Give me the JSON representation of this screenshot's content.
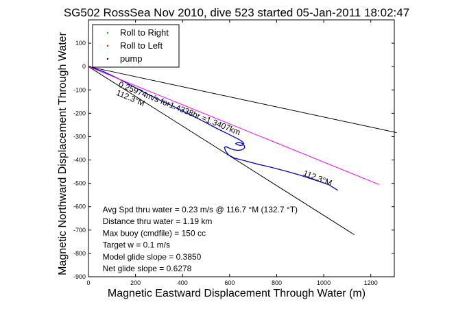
{
  "chart_data": {
    "type": "line",
    "title": "SG502 RossSea Nov 2010, dive 523 started 05-Jan-2011 18:02:47",
    "xlabel": "Magnetic Eastward Displacement Through Water (m)",
    "ylabel": "Magnetic Northward Displacement Through Water",
    "xlim": [
      0,
      1300
    ],
    "ylim": [
      -900,
      200
    ],
    "xticks": [
      0,
      200,
      400,
      600,
      800,
      1000,
      1200
    ],
    "yticks": [
      100,
      0,
      -100,
      -200,
      -300,
      -400,
      -500,
      -600,
      -700,
      -800,
      -900
    ],
    "grid": false,
    "legend_position": "top-left",
    "legend": [
      {
        "label": "Roll to Right",
        "color": "#00aa00"
      },
      {
        "label": "Roll to Left",
        "color": "#ff0000"
      },
      {
        "label": "pump",
        "color": "#000000"
      }
    ],
    "series": [
      {
        "color": "#0000cc",
        "x": [
          0,
          60,
          120,
          180,
          240,
          300,
          360,
          420,
          480,
          540,
          600,
          640,
          655,
          660,
          655,
          645,
          632,
          626,
          632,
          645,
          655,
          662,
          664,
          660,
          650,
          635,
          620,
          600,
          585,
          578,
          582,
          595,
          620,
          660,
          720,
          780,
          840,
          900,
          960,
          1020,
          1060
        ],
        "y": [
          0,
          -20,
          -48,
          -80,
          -112,
          -142,
          -170,
          -200,
          -230,
          -262,
          -292,
          -312,
          -322,
          -330,
          -336,
          -338,
          -334,
          -330,
          -326,
          -326,
          -330,
          -338,
          -346,
          -352,
          -357,
          -359,
          -357,
          -350,
          -343,
          -346,
          -360,
          -378,
          -392,
          -402,
          -418,
          -432,
          -448,
          -465,
          -485,
          -505,
          -530
        ]
      },
      {
        "color": "#ff00ff",
        "x": [
          0,
          1235
        ],
        "y": [
          0,
          -505
        ]
      }
    ],
    "reference_lines": [
      {
        "color": "#000000",
        "x": [
          0,
          1310
        ],
        "y": [
          0,
          -283
        ]
      },
      {
        "color": "#000000",
        "x": [
          0,
          1130
        ],
        "y": [
          0,
          -720
        ]
      }
    ],
    "annotations": [
      {
        "text": "0.25974m/s for1.4338hr =1.3407km",
        "x": 125,
        "y": -85,
        "angle": 22
      },
      {
        "text": "112.3°M",
        "x": 115,
        "y": -120,
        "angle": 23
      },
      {
        "text": "112.3°M",
        "x": 910,
        "y": -465,
        "angle": 21
      }
    ],
    "stats": [
      "Avg Spd thru water =  0.23 m/s @ 116.7    °M (132.7 °T)",
      "Distance thru water =  1.19 km",
      "Max buoy (cmdfile) = 150 cc",
      "Target w = 0.1 m/s",
      "Model glide slope = 0.3850",
      "Net glide slope = 0.6278"
    ]
  }
}
